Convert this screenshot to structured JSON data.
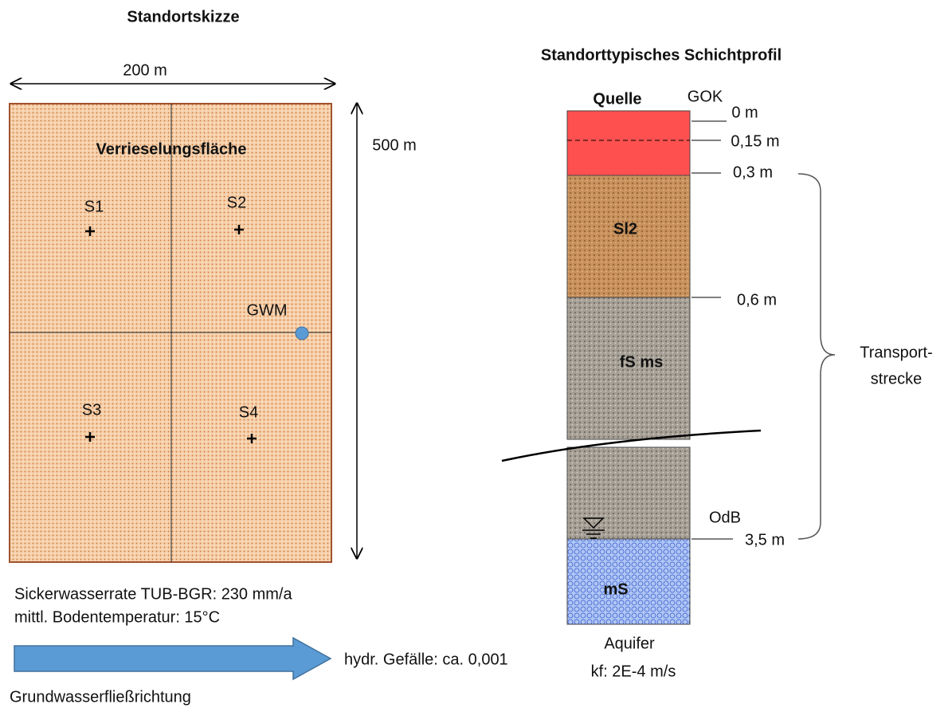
{
  "site_sketch": {
    "title": "Standortskizze",
    "width_label": "200 m",
    "height_label": "500 m",
    "area_label": "Verrieselungsfläche",
    "points": [
      "S1",
      "S2",
      "S3",
      "S4"
    ],
    "well": "GWM"
  },
  "site_info": {
    "seepage": "Sickerwasserrate TUB-BGR: 230 mm/a",
    "soil_temp": "mittl. Bodentemperatur: 15°C",
    "gradient": "hydr. Gefälle: ca. 0,001",
    "flow_direction": "Grundwasserfließrichtung"
  },
  "profile": {
    "title": "Standorttypisches Schichtprofil",
    "source": "Quelle",
    "surface": "GOK",
    "depths": [
      "0 m",
      "0,15 m",
      "0,3 m",
      "0,6 m",
      "3,5 m"
    ],
    "layers": [
      "Sl2",
      "fS ms",
      "mS"
    ],
    "odb": "OdB",
    "transport": [
      "Transport-",
      "strecke"
    ],
    "aquifer": "Aquifer",
    "kf": "kf: 2E-4 m/s"
  }
}
